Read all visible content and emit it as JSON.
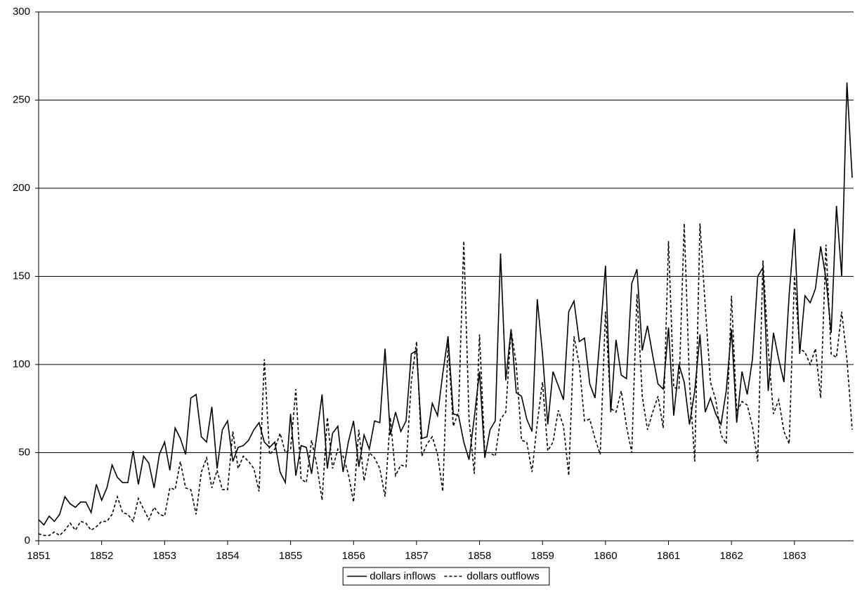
{
  "chart_data": {
    "type": "line",
    "categories": [
      "1851",
      null,
      null,
      null,
      null,
      null,
      null,
      null,
      null,
      null,
      null,
      null,
      "1852",
      null,
      null,
      null,
      null,
      null,
      null,
      null,
      null,
      null,
      null,
      null,
      "1853",
      null,
      null,
      null,
      null,
      null,
      null,
      null,
      null,
      null,
      null,
      null,
      "1854",
      null,
      null,
      null,
      null,
      null,
      null,
      null,
      null,
      null,
      null,
      null,
      "1855",
      null,
      null,
      null,
      null,
      null,
      null,
      null,
      null,
      null,
      null,
      null,
      "1856",
      null,
      null,
      null,
      null,
      null,
      null,
      null,
      null,
      null,
      null,
      null,
      "1857",
      null,
      null,
      null,
      null,
      null,
      null,
      null,
      null,
      null,
      null,
      null,
      "1858",
      null,
      null,
      null,
      null,
      null,
      null,
      null,
      null,
      null,
      null,
      null,
      "1859",
      null,
      null,
      null,
      null,
      null,
      null,
      null,
      null,
      null,
      null,
      null,
      "1860",
      null,
      null,
      null,
      null,
      null,
      null,
      null,
      null,
      null,
      null,
      null,
      "1861",
      null,
      null,
      null,
      null,
      null,
      null,
      null,
      null,
      null,
      null,
      null,
      "1862",
      null,
      null,
      null,
      null,
      null,
      null,
      null,
      null,
      null,
      null,
      null,
      "1863",
      null,
      null,
      null,
      null,
      null,
      null,
      null,
      null,
      null,
      null,
      null
    ],
    "series": [
      {
        "name": "dollars inflows",
        "color": "#000000",
        "dash": false,
        "values": [
          12,
          9,
          14,
          11,
          15,
          25,
          21,
          19,
          22,
          22,
          16,
          32,
          23,
          30,
          43,
          36,
          33,
          33,
          51,
          32,
          48,
          44,
          30,
          49,
          56,
          40,
          64,
          58,
          49,
          81,
          83,
          59,
          56,
          76,
          41,
          63,
          68,
          45,
          53,
          54,
          57,
          63,
          67,
          56,
          53,
          56,
          39,
          33,
          72,
          37,
          54,
          53,
          38,
          60,
          83,
          41,
          61,
          65,
          39,
          56,
          68,
          42,
          60,
          52,
          68,
          67,
          109,
          60,
          73,
          62,
          68,
          106,
          108,
          58,
          59,
          78,
          71,
          95,
          116,
          72,
          71,
          56,
          46,
          70,
          96,
          47,
          63,
          68,
          163,
          91,
          120,
          84,
          82,
          69,
          62,
          137,
          106,
          66,
          96,
          88,
          80,
          130,
          136,
          113,
          115,
          89,
          81,
          117,
          156,
          73,
          114,
          94,
          92,
          146,
          154,
          108,
          122,
          105,
          89,
          86,
          121,
          71,
          100,
          90,
          66,
          85,
          117,
          73,
          81,
          72,
          66,
          85,
          120,
          67,
          96,
          83,
          103,
          150,
          155,
          85,
          118,
          103,
          90,
          140,
          177,
          106,
          139,
          135,
          143,
          167,
          149,
          118,
          190,
          150,
          260,
          206
        ]
      },
      {
        "name": "dollars outflows",
        "color": "#000000",
        "dash": true,
        "values": [
          4,
          3,
          3,
          5,
          3,
          6,
          10,
          6,
          11,
          10,
          6,
          8,
          11,
          11,
          15,
          25,
          16,
          15,
          11,
          24,
          18,
          12,
          19,
          15,
          14,
          30,
          29,
          45,
          30,
          29,
          15,
          39,
          47,
          30,
          40,
          29,
          29,
          62,
          41,
          48,
          45,
          41,
          28,
          103,
          49,
          52,
          61,
          50,
          52,
          86,
          35,
          33,
          57,
          43,
          23,
          70,
          41,
          52,
          48,
          38,
          22,
          63,
          34,
          50,
          47,
          41,
          25,
          70,
          37,
          43,
          42,
          90,
          113,
          48,
          55,
          59,
          49,
          28,
          112,
          65,
          73,
          170,
          69,
          38,
          117,
          50,
          50,
          48,
          69,
          73,
          120,
          100,
          57,
          56,
          39,
          67,
          90,
          51,
          56,
          74,
          65,
          37,
          116,
          100,
          68,
          69,
          58,
          49,
          130,
          75,
          73,
          85,
          65,
          50,
          140,
          82,
          63,
          73,
          82,
          64,
          170,
          87,
          86,
          180,
          90,
          45,
          180,
          133,
          90,
          80,
          60,
          55,
          139,
          73,
          79,
          77,
          65,
          45,
          159,
          109,
          72,
          80,
          62,
          55,
          150,
          109,
          107,
          100,
          109,
          81,
          168,
          106,
          104,
          130,
          103,
          63
        ]
      }
    ],
    "ylim": [
      0,
      300
    ],
    "yticks": [
      0,
      50,
      100,
      150,
      200,
      250,
      300
    ],
    "grid": true,
    "legend": "bottom"
  }
}
